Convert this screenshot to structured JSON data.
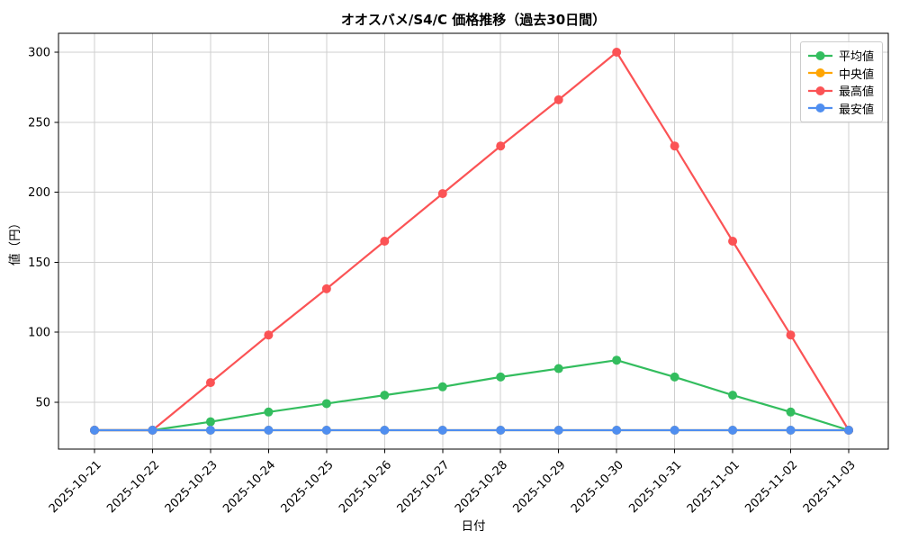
{
  "chart_data": {
    "type": "line",
    "title": "オオスバメ/S4/C 価格推移（過去30日間）",
    "xlabel": "日付",
    "ylabel": "値（円）",
    "categories": [
      "2025-10-21",
      "2025-10-22",
      "2025-10-23",
      "2025-10-24",
      "2025-10-25",
      "2025-10-26",
      "2025-10-27",
      "2025-10-28",
      "2025-10-29",
      "2025-10-30",
      "2025-10-31",
      "2025-11-01",
      "2025-11-02",
      "2025-11-03"
    ],
    "series": [
      {
        "name": "average",
        "label": "平均値",
        "color": "#33bd5e",
        "values": [
          30,
          30,
          36,
          43,
          49,
          55,
          61,
          68,
          74,
          80,
          68,
          55,
          43,
          30
        ]
      },
      {
        "name": "median",
        "label": "中央値",
        "color": "#ffa502",
        "values": [
          30,
          30,
          30,
          30,
          30,
          30,
          30,
          30,
          30,
          30,
          30,
          30,
          30,
          30
        ]
      },
      {
        "name": "max",
        "label": "最高値",
        "color": "#fb5355",
        "values": [
          30,
          30,
          64,
          98,
          131,
          165,
          199,
          233,
          266,
          300,
          233,
          165,
          98,
          30
        ]
      },
      {
        "name": "min",
        "label": "最安値",
        "color": "#4f8ef0",
        "values": [
          30,
          30,
          30,
          30,
          30,
          30,
          30,
          30,
          30,
          30,
          30,
          30,
          30,
          30
        ]
      }
    ],
    "yticks": [
      50,
      100,
      150,
      200,
      250,
      300
    ],
    "ylim": [
      16.5,
      313.5
    ],
    "grid": true,
    "legend_position": "upper right",
    "note_colors": {
      "grid": "#cfcfcf",
      "spine": "#000000",
      "background": "#ffffff"
    }
  }
}
